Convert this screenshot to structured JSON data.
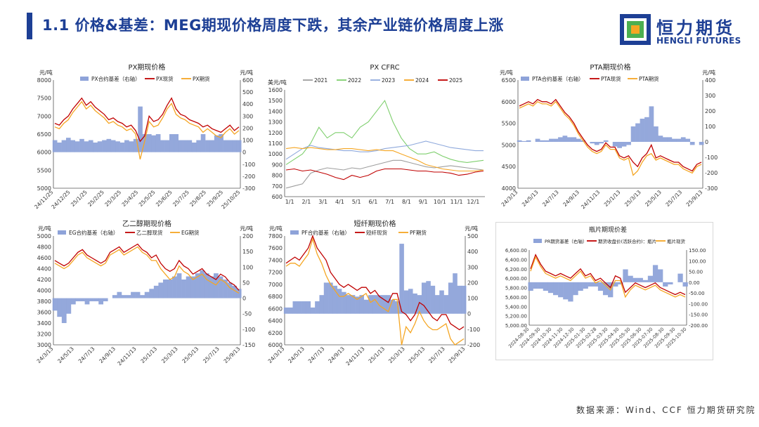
{
  "header": {
    "title": "1.1 价格&基差：MEG期现价格周度下跌，其余产业链价格周度上涨",
    "logo_cn": "恒力期货",
    "logo_en": "HENGLI FUTURES"
  },
  "footer": {
    "source": "数据来源：Wind、CCF 恒力期货研究院"
  },
  "colors": {
    "basis": "#8ea3d9",
    "spot": "#c00000",
    "futures": "#f5a623",
    "brand": "#1d3f95"
  },
  "chart_data": [
    {
      "id": "px",
      "type": "line",
      "title": "PX期现价格",
      "left_unit": "元/吨",
      "right_unit": "元/吨",
      "legend": [
        "PX合约基差（右轴）",
        "PX现货",
        "PX期货"
      ],
      "x_ticks": [
        "24/11/25",
        "24/12/25",
        "25/1/25",
        "25/2/25",
        "25/3/25",
        "25/4/25",
        "25/5/25",
        "25/6/25",
        "25/7/25",
        "25/8/25",
        "25/9/25",
        "25/10/25"
      ],
      "y_left": [
        5000,
        8000,
        500
      ],
      "y_right": [
        -300,
        600,
        100
      ],
      "spot": [
        6800,
        6750,
        6900,
        7000,
        7200,
        7350,
        7500,
        7300,
        7400,
        7250,
        7150,
        7050,
        6900,
        6950,
        6850,
        6800,
        6700,
        6750,
        6600,
        6300,
        6450,
        7000,
        6850,
        6900,
        7050,
        7300,
        7500,
        7200,
        7050,
        7000,
        6900,
        6850,
        6800,
        6700,
        6750,
        6650,
        6600,
        6550,
        6650,
        6750,
        6600,
        6700
      ],
      "futures": [
        6700,
        6650,
        6800,
        6900,
        7100,
        7250,
        7400,
        7200,
        7300,
        7150,
        7050,
        6950,
        6800,
        6850,
        6750,
        6700,
        6600,
        6650,
        6500,
        5800,
        6300,
        6850,
        6700,
        6750,
        6950,
        7200,
        7350,
        7050,
        6950,
        6900,
        6800,
        6750,
        6700,
        6550,
        6650,
        6550,
        6450,
        6400,
        6550,
        6650,
        6500,
        6600
      ],
      "basis": [
        100,
        80,
        100,
        120,
        100,
        90,
        110,
        90,
        100,
        80,
        90,
        100,
        110,
        100,
        90,
        80,
        100,
        90,
        110,
        380,
        150,
        150,
        140,
        150,
        100,
        100,
        150,
        150,
        100,
        100,
        100,
        80,
        100,
        150,
        100,
        100,
        140,
        150,
        100,
        100,
        100,
        100
      ]
    },
    {
      "id": "cfrc",
      "type": "line",
      "title": "PX CFRC",
      "left_unit": "美元/吨",
      "legend": [
        "2021",
        "2022",
        "2023",
        "2024",
        "2025"
      ],
      "x_ticks": [
        "1/1",
        "2/1",
        "3/1",
        "4/1",
        "5/1",
        "6/1",
        "7/1",
        "8/1",
        "9/1",
        "10/1",
        "11/1",
        "12/1"
      ],
      "y_left": [
        600,
        1600,
        100
      ],
      "series": [
        {
          "name": "2021",
          "color": "#9e9e9e",
          "values": [
            680,
            700,
            720,
            820,
            850,
            870,
            860,
            850,
            870,
            860,
            880,
            900,
            920,
            940,
            940,
            920,
            900,
            880,
            870,
            880,
            890,
            880,
            870,
            860,
            850
          ]
        },
        {
          "name": "2022",
          "color": "#7fcf6e",
          "values": [
            900,
            950,
            1000,
            1100,
            1250,
            1150,
            1200,
            1200,
            1150,
            1250,
            1300,
            1400,
            1500,
            1300,
            1150,
            1050,
            1000,
            1000,
            1020,
            980,
            950,
            930,
            920,
            930,
            940
          ]
        },
        {
          "name": "2023",
          "color": "#8fa9dc",
          "values": [
            950,
            1000,
            1050,
            1080,
            1060,
            1050,
            1040,
            1030,
            1030,
            1020,
            1020,
            1030,
            1050,
            1060,
            1070,
            1080,
            1100,
            1120,
            1100,
            1080,
            1060,
            1050,
            1040,
            1030,
            1030
          ]
        },
        {
          "name": "2024",
          "color": "#f5a623",
          "values": [
            1050,
            1060,
            1050,
            1060,
            1050,
            1040,
            1040,
            1050,
            1050,
            1040,
            1030,
            1040,
            1030,
            1030,
            1000,
            970,
            940,
            900,
            880,
            860,
            850,
            840,
            840,
            840,
            850
          ]
        },
        {
          "name": "2025",
          "color": "#c00000",
          "values": [
            850,
            860,
            840,
            850,
            830,
            810,
            780,
            760,
            800,
            780,
            800,
            840,
            860,
            860,
            860,
            850,
            840,
            840,
            830,
            830,
            820,
            800,
            810,
            830,
            840
          ]
        }
      ]
    },
    {
      "id": "pta",
      "type": "line",
      "title": "PTA期现价格",
      "left_unit": "元/吨",
      "right_unit": "元/吨",
      "legend": [
        "PTA合约基差（右轴）",
        "PTA现货",
        "PTA期货"
      ],
      "x_ticks": [
        "24/3/13",
        "24/5/13",
        "24/7/13",
        "24/9/13",
        "24/11/13",
        "25/1/13",
        "25/3/13",
        "25/5/13",
        "25/7/13",
        "25/9/13"
      ],
      "y_left": [
        4000,
        6500,
        500
      ],
      "y_right": [
        -300,
        400,
        100
      ],
      "spot": [
        5900,
        5950,
        6000,
        5950,
        6050,
        6000,
        6000,
        5950,
        6050,
        5900,
        5750,
        5650,
        5500,
        5300,
        5150,
        5000,
        4900,
        4850,
        4900,
        5050,
        4950,
        4950,
        4750,
        4700,
        4750,
        4600,
        4500,
        4700,
        4800,
        5000,
        4700,
        4750,
        4700,
        4650,
        4600,
        4600,
        4500,
        4450,
        4400,
        4550,
        4600
      ],
      "futures": [
        5850,
        5900,
        5950,
        5900,
        6000,
        5950,
        5950,
        5900,
        6000,
        5850,
        5700,
        5600,
        5450,
        5250,
        5100,
        4950,
        4850,
        4800,
        4850,
        5000,
        4900,
        4900,
        4700,
        4650,
        4700,
        4300,
        4400,
        4600,
        4750,
        4800,
        4650,
        4700,
        4650,
        4600,
        4550,
        4550,
        4450,
        4400,
        4350,
        4500,
        4550
      ],
      "basis": [
        10,
        5,
        10,
        0,
        20,
        10,
        10,
        20,
        20,
        30,
        40,
        30,
        30,
        20,
        10,
        0,
        -10,
        -20,
        -10,
        10,
        0,
        -30,
        -40,
        -30,
        -20,
        100,
        120,
        150,
        160,
        230,
        100,
        40,
        30,
        30,
        20,
        20,
        30,
        20,
        -20,
        0,
        -20
      ]
    },
    {
      "id": "eg",
      "type": "line",
      "title": "乙二醇期现价格",
      "left_unit": "元/吨",
      "right_unit": "元/吨",
      "legend": [
        "EG合约基差（右轴）",
        "乙二醇现货",
        "EG期货"
      ],
      "x_ticks": [
        "24/3/13",
        "24/5/13",
        "24/7/13",
        "24/9/13",
        "24/11/13",
        "25/1/13",
        "25/3/13",
        "25/5/13",
        "25/7/13",
        "25/9/13"
      ],
      "y_left": [
        3000,
        5000,
        200
      ],
      "y_right": [
        -150,
        200,
        50
      ],
      "spot": [
        4550,
        4500,
        4450,
        4500,
        4600,
        4700,
        4750,
        4650,
        4600,
        4550,
        4500,
        4550,
        4700,
        4750,
        4800,
        4700,
        4750,
        4800,
        4850,
        4750,
        4700,
        4600,
        4650,
        4500,
        4400,
        4350,
        4400,
        4550,
        4450,
        4400,
        4300,
        4350,
        4400,
        4300,
        4250,
        4200,
        4300,
        4250,
        4150,
        4100,
        4000
      ],
      "futures": [
        4500,
        4450,
        4400,
        4450,
        4550,
        4650,
        4700,
        4600,
        4550,
        4500,
        4450,
        4500,
        4650,
        4700,
        4750,
        4650,
        4700,
        4750,
        4800,
        4700,
        4650,
        4550,
        4550,
        4400,
        4300,
        4200,
        4250,
        4450,
        4350,
        4300,
        4200,
        4250,
        4300,
        4200,
        4150,
        4100,
        4200,
        4150,
        4050,
        4000,
        3950
      ],
      "basis": [
        -40,
        -60,
        -80,
        -50,
        -20,
        -10,
        -10,
        -20,
        -10,
        -10,
        -20,
        -10,
        0,
        10,
        20,
        10,
        10,
        20,
        20,
        10,
        20,
        30,
        40,
        50,
        60,
        60,
        70,
        80,
        60,
        70,
        70,
        80,
        90,
        80,
        70,
        80,
        70,
        60,
        50,
        40,
        30
      ]
    },
    {
      "id": "pf",
      "type": "line",
      "title": "短纤期现价格",
      "left_unit": "元/吨",
      "right_unit": "元/吨",
      "legend": [
        "PF合约基差（右轴）",
        "短纤现货",
        "PF期货"
      ],
      "x_ticks": [
        "24/3/13",
        "24/5/13",
        "24/7/13",
        "24/9/13",
        "24/11/13",
        "25/1/13",
        "25/3/13",
        "25/5/13",
        "25/7/13",
        "25/9/13"
      ],
      "y_left": [
        6000,
        7800,
        200
      ],
      "y_right": [
        -200,
        500,
        100
      ],
      "spot": [
        7350,
        7400,
        7450,
        7400,
        7500,
        7600,
        7800,
        7600,
        7500,
        7400,
        7200,
        7100,
        7000,
        6950,
        7000,
        6950,
        6900,
        6950,
        6950,
        6850,
        6900,
        6800,
        6750,
        6700,
        6850,
        6850,
        6550,
        6500,
        6400,
        6500,
        6700,
        6650,
        6550,
        6450,
        6400,
        6500,
        6500,
        6350,
        6300,
        6250,
        6300
      ],
      "futures": [
        7300,
        7350,
        7350,
        7300,
        7400,
        7500,
        7750,
        7500,
        7350,
        7150,
        7000,
        6900,
        6800,
        6800,
        6850,
        6800,
        6750,
        6800,
        6850,
        6700,
        6750,
        6650,
        6600,
        6550,
        6750,
        6750,
        6000,
        6300,
        6200,
        6350,
        6550,
        6400,
        6300,
        6250,
        6250,
        6300,
        6350,
        6100,
        6000,
        6050,
        6100
      ],
      "basis": [
        40,
        40,
        80,
        80,
        80,
        80,
        40,
        80,
        120,
        200,
        200,
        180,
        160,
        140,
        120,
        120,
        110,
        120,
        90,
        120,
        120,
        120,
        120,
        120,
        90,
        80,
        450,
        150,
        160,
        130,
        120,
        200,
        210,
        180,
        120,
        150,
        120,
        200,
        260,
        180,
        180
      ]
    },
    {
      "id": "pr",
      "type": "line",
      "title": "瓶片期现价差",
      "legend": [
        "PR期货基差（右轴）",
        "期货收盘价(活跃合约)：瓶片",
        "瓶片现货"
      ],
      "x_ticks": [
        "2024-08-30",
        "2024-09-30",
        "2024-10-30",
        "2024-11-30",
        "2024-12-30",
        "2025-01-30",
        "2025-02-28",
        "2025-03-30",
        "2025-04-30",
        "2025-05-30",
        "2025-06-30",
        "2025-07-30",
        "2025-08-30",
        "2025-09-30",
        "2025-10-30"
      ],
      "y_left_labels": [
        "5,000.00",
        "5,200.00",
        "5,400.00",
        "5,600.00",
        "5,800.00",
        "6,000.00",
        "6,200.00",
        "6,400.00",
        "6,600.00"
      ],
      "y_right_labels": [
        "-200.00",
        "-150.00",
        "-100.00",
        "-50.00",
        "0.00",
        "50.00",
        "100.00",
        "150.00"
      ],
      "y_left": [
        5000,
        6600,
        200
      ],
      "y_right": [
        -200,
        150,
        50
      ],
      "spot": [
        6200,
        6500,
        6300,
        6150,
        6100,
        6050,
        6100,
        6050,
        6000,
        6100,
        6200,
        6050,
        6100,
        5950,
        6000,
        5900,
        5800,
        6050,
        6000,
        5700,
        5800,
        5900,
        5850,
        5800,
        5850,
        5900,
        5800,
        5750,
        5700,
        5650,
        5700,
        5650
      ],
      "futures": [
        6150,
        6450,
        6250,
        6100,
        6050,
        6000,
        6050,
        6000,
        5950,
        6050,
        6150,
        6000,
        6050,
        5900,
        5950,
        5850,
        5750,
        5950,
        5950,
        5600,
        5750,
        5850,
        5800,
        5750,
        5800,
        5850,
        5750,
        5700,
        5650,
        5600,
        5650,
        5600
      ],
      "basis": [
        -40,
        -30,
        -30,
        -40,
        -50,
        -60,
        -70,
        -80,
        -90,
        -60,
        -40,
        -30,
        -20,
        -20,
        -40,
        -60,
        -70,
        -20,
        -10,
        60,
        30,
        20,
        20,
        10,
        30,
        80,
        60,
        -20,
        -10,
        0,
        40,
        -20
      ]
    }
  ]
}
